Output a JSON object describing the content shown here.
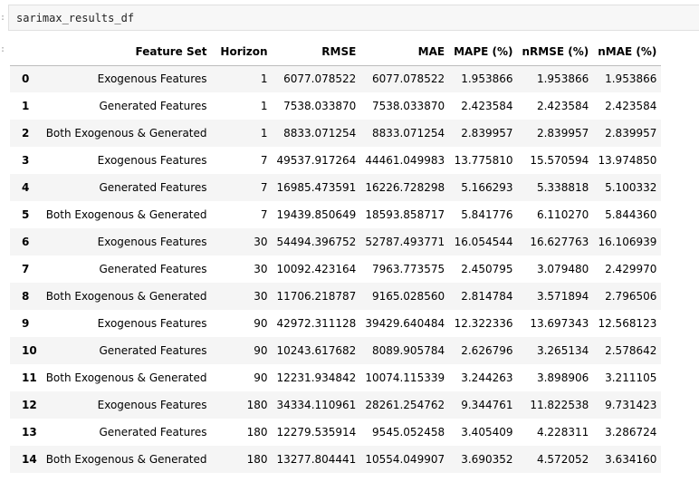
{
  "cell": {
    "code": "sarimax_results_df",
    "prompt": ":",
    "output_prompt": ":"
  },
  "table": {
    "columns": [
      "Feature Set",
      "Horizon",
      "RMSE",
      "MAE",
      "MAPE (%)",
      "nRMSE (%)",
      "nMAE (%)"
    ],
    "rows": [
      [
        "0",
        "Exogenous Features",
        "1",
        "6077.078522",
        "6077.078522",
        "1.953866",
        "1.953866",
        "1.953866"
      ],
      [
        "1",
        "Generated Features",
        "1",
        "7538.033870",
        "7538.033870",
        "2.423584",
        "2.423584",
        "2.423584"
      ],
      [
        "2",
        "Both Exogenous & Generated",
        "1",
        "8833.071254",
        "8833.071254",
        "2.839957",
        "2.839957",
        "2.839957"
      ],
      [
        "3",
        "Exogenous Features",
        "7",
        "49537.917264",
        "44461.049983",
        "13.775810",
        "15.570594",
        "13.974850"
      ],
      [
        "4",
        "Generated Features",
        "7",
        "16985.473591",
        "16226.728298",
        "5.166293",
        "5.338818",
        "5.100332"
      ],
      [
        "5",
        "Both Exogenous & Generated",
        "7",
        "19439.850649",
        "18593.858717",
        "5.841776",
        "6.110270",
        "5.844360"
      ],
      [
        "6",
        "Exogenous Features",
        "30",
        "54494.396752",
        "52787.493771",
        "16.054544",
        "16.627763",
        "16.106939"
      ],
      [
        "7",
        "Generated Features",
        "30",
        "10092.423164",
        "7963.773575",
        "2.450795",
        "3.079480",
        "2.429970"
      ],
      [
        "8",
        "Both Exogenous & Generated",
        "30",
        "11706.218787",
        "9165.028560",
        "2.814784",
        "3.571894",
        "2.796506"
      ],
      [
        "9",
        "Exogenous Features",
        "90",
        "42972.311128",
        "39429.640484",
        "12.322336",
        "13.697343",
        "12.568123"
      ],
      [
        "10",
        "Generated Features",
        "90",
        "10243.617682",
        "8089.905784",
        "2.626796",
        "3.265134",
        "2.578642"
      ],
      [
        "11",
        "Both Exogenous & Generated",
        "90",
        "12231.934842",
        "10074.115339",
        "3.244263",
        "3.898906",
        "3.211105"
      ],
      [
        "12",
        "Exogenous Features",
        "180",
        "34334.110961",
        "28261.254762",
        "9.344761",
        "11.822538",
        "9.731423"
      ],
      [
        "13",
        "Generated Features",
        "180",
        "12279.535914",
        "9545.052458",
        "3.405409",
        "4.228311",
        "3.286724"
      ],
      [
        "14",
        "Both Exogenous & Generated",
        "180",
        "13277.804441",
        "10554.049907",
        "3.690352",
        "4.572052",
        "3.634160"
      ]
    ]
  }
}
